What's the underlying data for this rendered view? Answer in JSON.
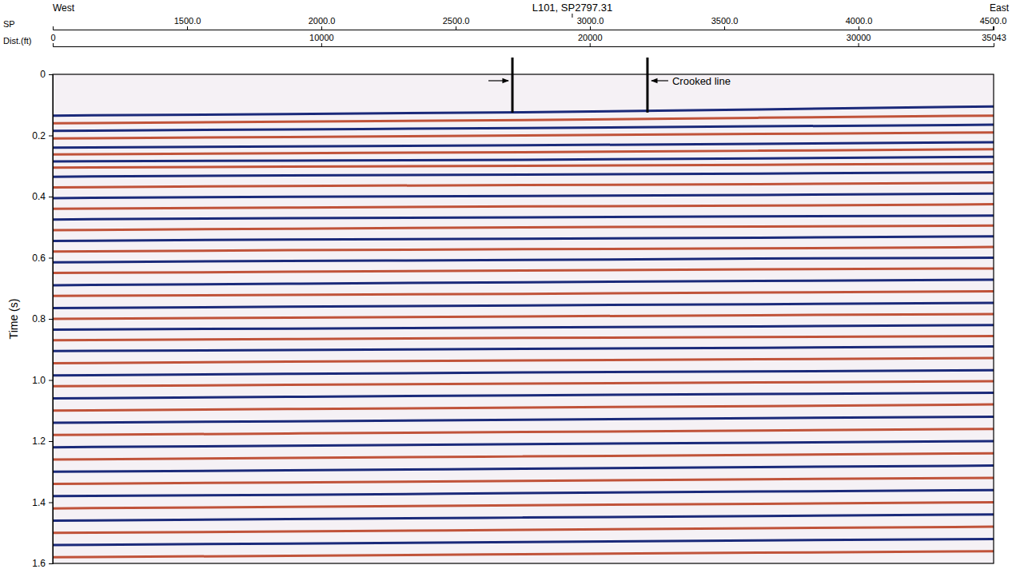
{
  "chart_data": {
    "type": "seismic_section",
    "direction_labels": [
      "West",
      "East"
    ],
    "x_label": "Dist.(ft)",
    "x2_label": "SP",
    "y_label": "Time (s)",
    "annotations": [
      {
        "text": "L101, SP2797.31",
        "x": 19350
      }
    ],
    "crooked_line": {
      "label": "Crooked line",
      "x": [
        17120,
        22150
      ],
      "time": 0.125
    },
    "xlim": [
      0,
      35043
    ],
    "xticks": [
      0,
      10000,
      20000,
      30000,
      35043
    ],
    "x2lim": [
      1000,
      4503
    ],
    "x2ticks": [
      {
        "value": 1500,
        "label": "1500.0"
      },
      {
        "value": 2000,
        "label": "2000.0"
      },
      {
        "value": 2500,
        "label": "2500.0"
      },
      {
        "value": 3000,
        "label": "3000.0"
      },
      {
        "value": 3500,
        "label": "3500.0"
      },
      {
        "value": 4000,
        "label": "4000.0"
      },
      {
        "value": 4500,
        "label": "4500.0"
      }
    ],
    "ylim": [
      0,
      1.6
    ],
    "yticks": [
      0,
      0.2,
      0.4,
      0.6,
      0.8,
      {
        "value": 1,
        "label": "1.0"
      },
      1.2,
      1.4,
      1.6
    ],
    "grid": false,
    "x": [
      0,
      8750,
      17500,
      26250,
      35043
    ],
    "series": [
      {
        "color": "#1b2a7a",
        "values": [
          0.135,
          0.13,
          0.125,
          0.115,
          0.105
        ]
      },
      {
        "color": "#c0533a",
        "values": [
          0.16,
          0.155,
          0.15,
          0.142,
          0.135
        ]
      },
      {
        "color": "#1b2a7a",
        "values": [
          0.185,
          0.18,
          0.176,
          0.17,
          0.165
        ]
      },
      {
        "color": "#c0533a",
        "values": [
          0.21,
          0.205,
          0.2,
          0.195,
          0.19
        ]
      },
      {
        "color": "#1b2a7a",
        "values": [
          0.24,
          0.236,
          0.232,
          0.228,
          0.222
        ]
      },
      {
        "color": "#c0533a",
        "values": [
          0.262,
          0.258,
          0.255,
          0.25,
          0.245
        ]
      },
      {
        "color": "#1b2a7a",
        "values": [
          0.285,
          0.282,
          0.28,
          0.275,
          0.27
        ]
      },
      {
        "color": "#c0533a",
        "values": [
          0.305,
          0.302,
          0.3,
          0.296,
          0.292
        ]
      },
      {
        "color": "#1b2a7a",
        "values": [
          0.335,
          0.33,
          0.328,
          0.325,
          0.32
        ]
      },
      {
        "color": "#c0533a",
        "values": [
          0.37,
          0.365,
          0.362,
          0.36,
          0.355
        ]
      },
      {
        "color": "#1b2a7a",
        "values": [
          0.405,
          0.4,
          0.398,
          0.395,
          0.39
        ]
      },
      {
        "color": "#c0533a",
        "values": [
          0.44,
          0.436,
          0.432,
          0.43,
          0.425
        ]
      },
      {
        "color": "#1b2a7a",
        "values": [
          0.475,
          0.47,
          0.468,
          0.465,
          0.462
        ]
      },
      {
        "color": "#c0533a",
        "values": [
          0.51,
          0.505,
          0.5,
          0.498,
          0.495
        ]
      },
      {
        "color": "#1b2a7a",
        "values": [
          0.545,
          0.54,
          0.538,
          0.535,
          0.53
        ]
      },
      {
        "color": "#c0533a",
        "values": [
          0.58,
          0.575,
          0.572,
          0.57,
          0.565
        ]
      },
      {
        "color": "#1b2a7a",
        "values": [
          0.615,
          0.61,
          0.608,
          0.602,
          0.6
        ]
      },
      {
        "color": "#c0533a",
        "values": [
          0.65,
          0.646,
          0.642,
          0.638,
          0.635
        ]
      },
      {
        "color": "#1b2a7a",
        "values": [
          0.69,
          0.685,
          0.68,
          0.676,
          0.672
        ]
      },
      {
        "color": "#c0533a",
        "values": [
          0.725,
          0.722,
          0.718,
          0.714,
          0.71
        ]
      },
      {
        "color": "#1b2a7a",
        "values": [
          0.765,
          0.76,
          0.756,
          0.752,
          0.748
        ]
      },
      {
        "color": "#c0533a",
        "values": [
          0.8,
          0.796,
          0.792,
          0.788,
          0.784
        ]
      },
      {
        "color": "#1b2a7a",
        "values": [
          0.835,
          0.832,
          0.828,
          0.825,
          0.82
        ]
      },
      {
        "color": "#c0533a",
        "values": [
          0.87,
          0.866,
          0.862,
          0.86,
          0.856
        ]
      },
      {
        "color": "#1b2a7a",
        "values": [
          0.905,
          0.902,
          0.898,
          0.895,
          0.89
        ]
      },
      {
        "color": "#c0533a",
        "values": [
          0.945,
          0.94,
          0.936,
          0.932,
          0.928
        ]
      },
      {
        "color": "#1b2a7a",
        "values": [
          0.985,
          0.98,
          0.975,
          0.972,
          0.968
        ]
      },
      {
        "color": "#c0533a",
        "values": [
          1.02,
          1.016,
          1.012,
          1.008,
          1.004
        ]
      },
      {
        "color": "#1b2a7a",
        "values": [
          1.06,
          1.055,
          1.05,
          1.046,
          1.042
        ]
      },
      {
        "color": "#c0533a",
        "values": [
          1.1,
          1.095,
          1.09,
          1.086,
          1.08
        ]
      },
      {
        "color": "#1b2a7a",
        "values": [
          1.14,
          1.135,
          1.13,
          1.125,
          1.12
        ]
      },
      {
        "color": "#c0533a",
        "values": [
          1.18,
          1.175,
          1.17,
          1.166,
          1.16
        ]
      },
      {
        "color": "#1b2a7a",
        "values": [
          1.22,
          1.215,
          1.21,
          1.205,
          1.2
        ]
      },
      {
        "color": "#c0533a",
        "values": [
          1.26,
          1.255,
          1.25,
          1.245,
          1.24
        ]
      },
      {
        "color": "#1b2a7a",
        "values": [
          1.3,
          1.296,
          1.29,
          1.285,
          1.28
        ]
      },
      {
        "color": "#c0533a",
        "values": [
          1.34,
          1.335,
          1.33,
          1.325,
          1.32
        ]
      },
      {
        "color": "#1b2a7a",
        "values": [
          1.38,
          1.376,
          1.37,
          1.365,
          1.36
        ]
      },
      {
        "color": "#c0533a",
        "values": [
          1.42,
          1.415,
          1.41,
          1.405,
          1.4
        ]
      },
      {
        "color": "#1b2a7a",
        "values": [
          1.46,
          1.455,
          1.45,
          1.445,
          1.44
        ]
      },
      {
        "color": "#c0533a",
        "values": [
          1.5,
          1.496,
          1.49,
          1.485,
          1.48
        ]
      },
      {
        "color": "#1b2a7a",
        "values": [
          1.54,
          1.535,
          1.53,
          1.525,
          1.52
        ]
      },
      {
        "color": "#c0533a",
        "values": [
          1.58,
          1.575,
          1.57,
          1.565,
          1.56
        ]
      }
    ]
  }
}
